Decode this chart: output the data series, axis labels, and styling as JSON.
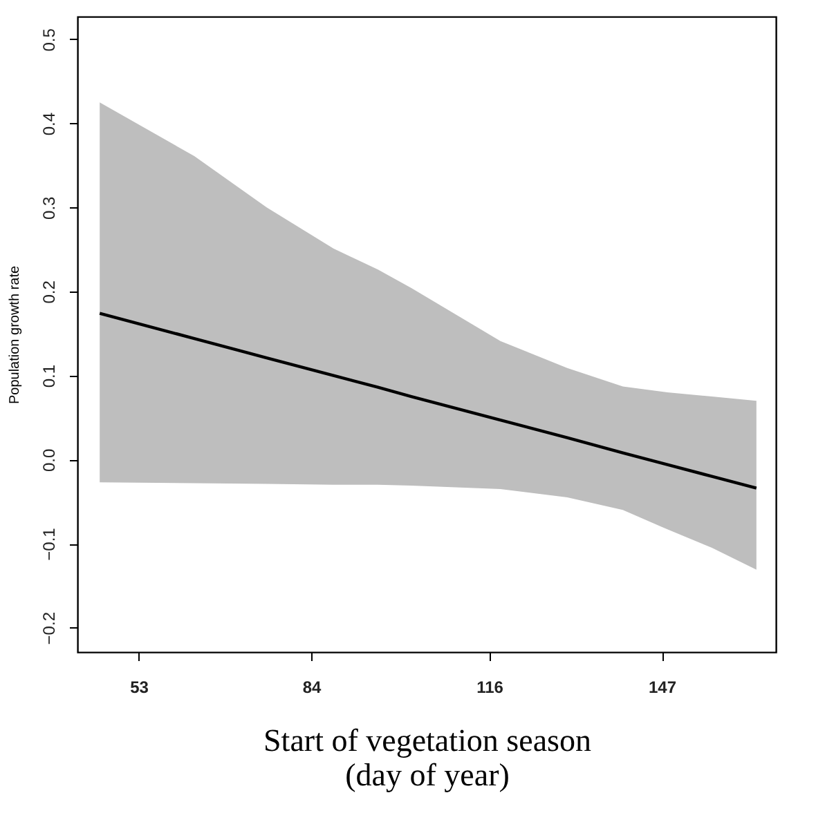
{
  "chart_data": {
    "type": "line",
    "xlabel": "Start of vegetation season (day of year)",
    "ylabel": "Population growth rate",
    "x": [
      46,
      63,
      76,
      88,
      96,
      102,
      118,
      130,
      140,
      148,
      156,
      164
    ],
    "series": [
      {
        "color": "#000000",
        "values": [
          0.174,
          0.144,
          0.121,
          0.1,
          0.086,
          0.075,
          0.047,
          0.026,
          0.008,
          -0.006,
          -0.02,
          -0.034
        ],
        "upper": [
          0.425,
          0.361,
          0.3,
          0.251,
          0.226,
          0.204,
          0.141,
          0.109,
          0.087,
          0.08,
          0.075,
          0.07
        ],
        "lower": [
          -0.027,
          -0.028,
          -0.029,
          -0.03,
          -0.03,
          -0.031,
          -0.035,
          -0.045,
          -0.06,
          -0.083,
          -0.105,
          -0.131
        ]
      }
    ],
    "xlim": [
      42,
      167.5
    ],
    "xticks": [
      53,
      84,
      116,
      147
    ],
    "ylim": [
      -0.229,
      0.527
    ],
    "yticks": [
      -0.2,
      -0.1,
      {
        "value": 0,
        "label": "0.0"
      },
      0.1,
      0.2,
      0.3,
      0.4,
      0.5
    ],
    "grid": false,
    "legend": false,
    "marker": "none",
    "line_style": "solid"
  }
}
